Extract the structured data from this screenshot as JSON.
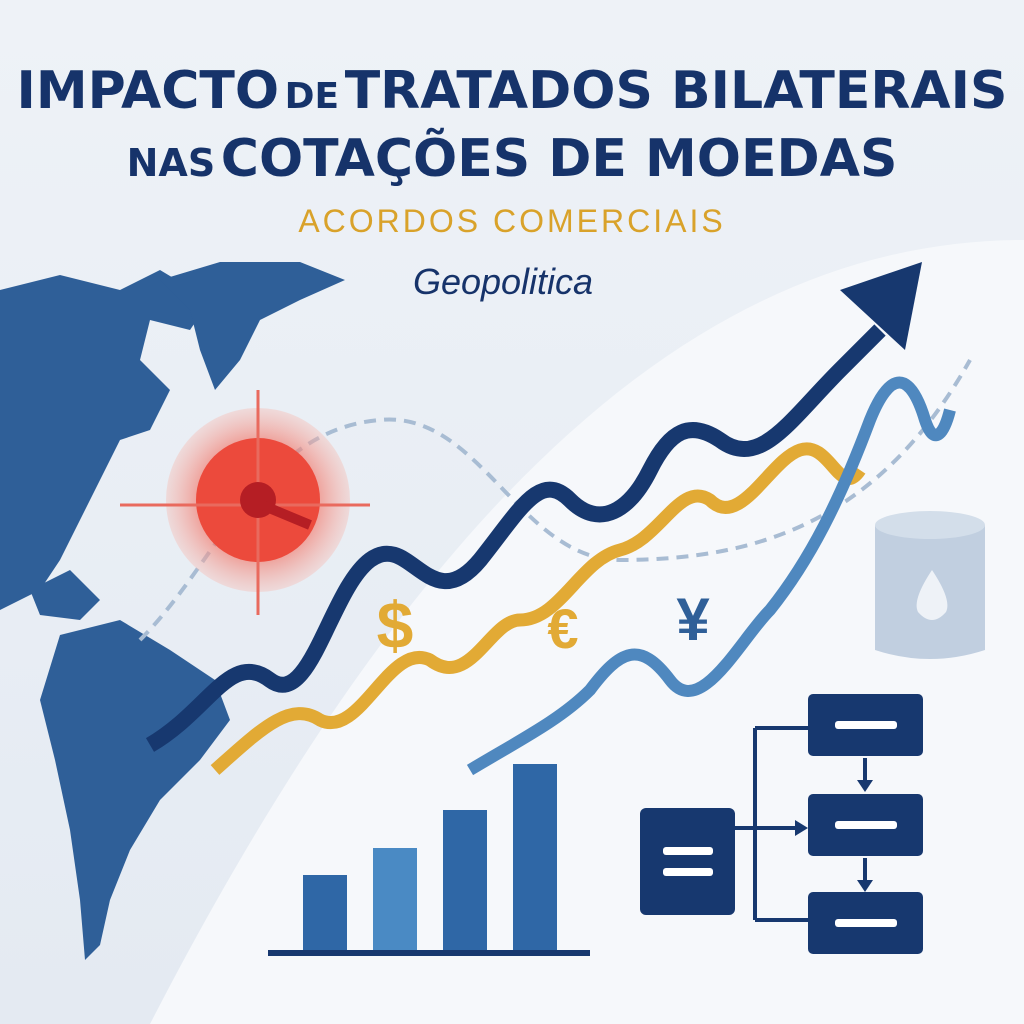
{
  "header": {
    "title": {
      "line1": [
        "IMPACTO",
        "DE",
        "TRATADOS BILATERAIS"
      ],
      "line2": [
        "NAS",
        "COTAÇÕES DE MOEDAS"
      ]
    },
    "subtitle": "ACORDOS COMERCIAIS",
    "tag": "Geopolitica"
  },
  "symbols": [
    "$",
    "€",
    "¥"
  ]
}
